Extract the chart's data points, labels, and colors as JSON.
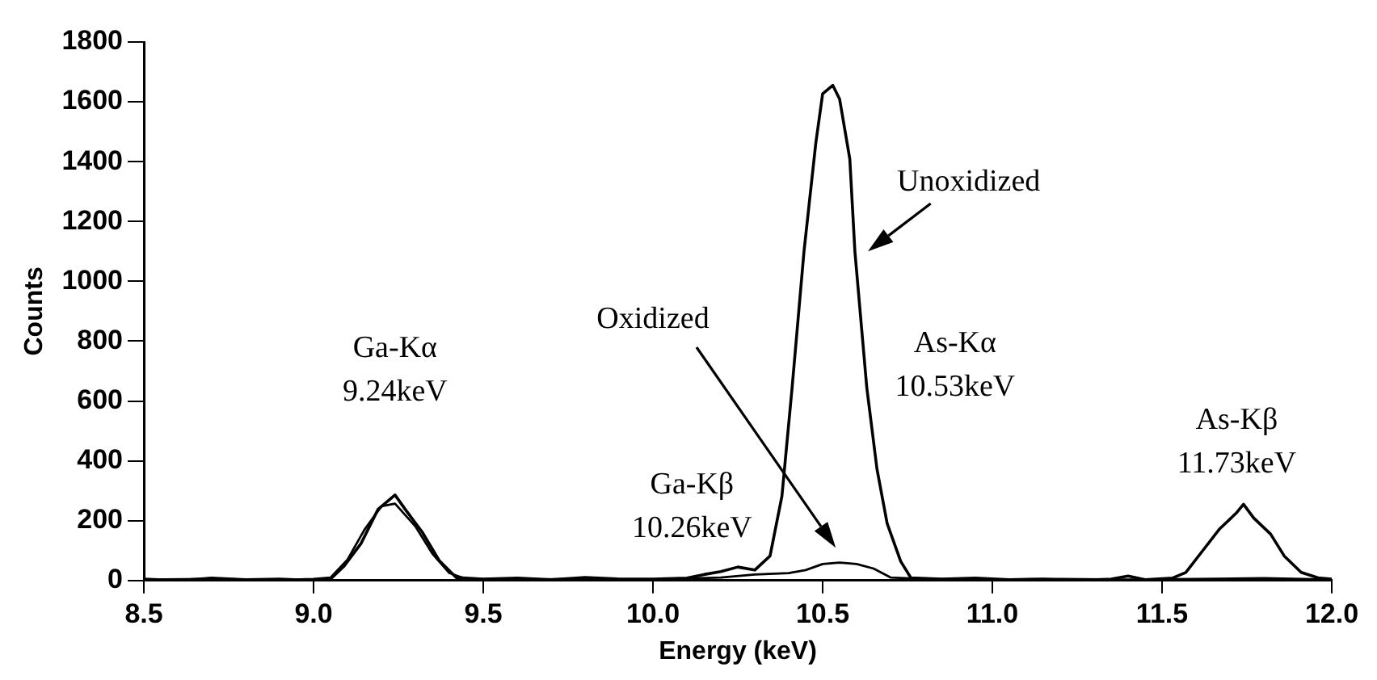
{
  "chart_data": {
    "type": "line",
    "xlabel": "Energy (keV)",
    "ylabel": "Counts",
    "xlim": [
      8.5,
      12.0
    ],
    "ylim": [
      0,
      1800
    ],
    "xticks": [
      8.5,
      {
        "value": 9,
        "label": "9.0"
      },
      9.5,
      {
        "value": 10,
        "label": "10.0"
      },
      10.5,
      {
        "value": 11,
        "label": "11.0"
      },
      11.5,
      {
        "value": 12,
        "label": "12.0"
      }
    ],
    "yticks": [
      0,
      200,
      400,
      600,
      800,
      1000,
      1200,
      1400,
      1600,
      1800
    ],
    "marker": "none",
    "line_style": "solid",
    "series": [
      {
        "name": "Unoxidized",
        "color": "#000000",
        "x": [
          8.5,
          8.6,
          8.7,
          8.8,
          8.9,
          9.0,
          9.05,
          9.09,
          9.14,
          9.19,
          9.24,
          9.27,
          9.32,
          9.37,
          9.42,
          9.5,
          9.6,
          9.7,
          9.8,
          9.9,
          10.0,
          10.1,
          10.15,
          10.2,
          10.25,
          10.3,
          10.345,
          10.38,
          10.41,
          10.445,
          10.48,
          10.5,
          10.53,
          10.55,
          10.58,
          10.595,
          10.63,
          10.66,
          10.69,
          10.73,
          10.76,
          10.85,
          10.95,
          11.05,
          11.15,
          11.25,
          11.35,
          11.4,
          11.45,
          11.53,
          11.57,
          11.62,
          11.67,
          11.72,
          11.74,
          11.77,
          11.82,
          11.86,
          11.91,
          11.96,
          12.0
        ],
        "values": [
          5,
          0,
          8,
          3,
          5,
          0,
          5,
          48,
          124,
          238,
          286,
          238,
          162,
          67,
          10,
          5,
          8,
          3,
          10,
          5,
          5,
          8,
          20,
          30,
          45,
          35,
          82,
          282,
          645,
          1100,
          1464,
          1627,
          1655,
          1609,
          1409,
          1100,
          645,
          373,
          191,
          64,
          9,
          5,
          8,
          3,
          5,
          0,
          5,
          15,
          3,
          8,
          27,
          100,
          173,
          227,
          255,
          209,
          155,
          82,
          27,
          9,
          5
        ]
      },
      {
        "name": "Oxidized",
        "color": "#000000",
        "x": [
          8.5,
          8.7,
          8.9,
          9.0,
          9.05,
          9.1,
          9.15,
          9.2,
          9.24,
          9.3,
          9.35,
          9.4,
          9.45,
          9.6,
          9.8,
          10.0,
          10.2,
          10.3,
          10.4,
          10.45,
          10.5,
          10.55,
          10.6,
          10.65,
          10.7,
          10.8,
          11.0,
          11.2,
          11.4,
          11.6,
          11.8,
          12.0
        ],
        "values": [
          3,
          5,
          2,
          5,
          10,
          70,
          170,
          248,
          257,
          181,
          90,
          25,
          5,
          3,
          5,
          3,
          10,
          20,
          25,
          35,
          55,
          60,
          55,
          40,
          10,
          5,
          3,
          5,
          3,
          5,
          8,
          3
        ]
      }
    ],
    "annotations": [
      "Ga-Kα\n9.24keV",
      "Ga-Kβ\n10.26keV",
      "As-Kα\n10.53keV",
      "As-Kβ\n11.73keV"
    ]
  }
}
